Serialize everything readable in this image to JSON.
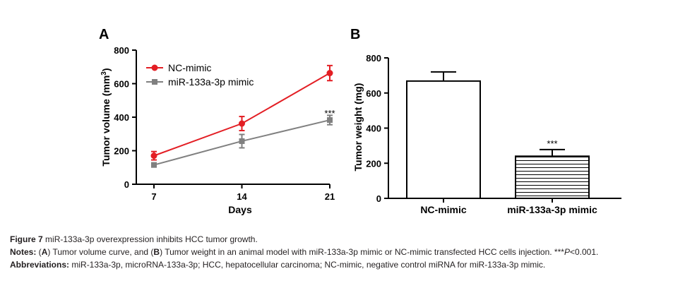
{
  "figure": {
    "caption": {
      "figure_label": "Figure 7",
      "title": "miR-133a-3p overexpression inhibits HCC tumor growth.",
      "notes_label": "Notes:",
      "notes_a_label": "A",
      "notes_a_text": ") Tumor volume curve, and (",
      "notes_b_label": "B",
      "notes_b_text": ") Tumor weight in an animal model with miR-133a-3p mimic or NC-mimic transfected HCC cells injection. ***",
      "notes_p": "P",
      "notes_p_text": "<0.001.",
      "abbrev_label": "Abbreviations:",
      "abbrev_text": "miR-133a-3p, microRNA-133a-3p; HCC, hepatocellular carcinoma; NC-mimic, negative control miRNA for miR-133a-3p mimic."
    }
  },
  "chart_data": [
    {
      "panel": "A",
      "type": "line",
      "xlabel": "Days",
      "ylabel": "Tumor volume (mm",
      "ylabel_sup": "3",
      "ylabel_end": ")",
      "x": [
        7,
        14,
        21
      ],
      "xticklabels": [
        "7",
        "14",
        "21"
      ],
      "ylim": [
        0,
        800
      ],
      "yticks": [
        0,
        200,
        400,
        600,
        800
      ],
      "legend_position": "top-left",
      "series": [
        {
          "name": "NC-mimic",
          "color": "#e31e24",
          "values": [
            170,
            362,
            663
          ],
          "errors": [
            25,
            42,
            45
          ]
        },
        {
          "name": "miR-133a-3p mimic",
          "color": "#808080",
          "values": [
            115,
            257,
            383
          ],
          "errors": [
            12,
            40,
            28
          ]
        }
      ],
      "annotations": [
        {
          "text": "***",
          "x": 21,
          "y": 430
        }
      ]
    },
    {
      "panel": "B",
      "type": "bar",
      "ylabel": "Tumor weight (mg)",
      "categories": [
        "NC-mimic",
        "miR-133a-3p mimic"
      ],
      "values": [
        668,
        240
      ],
      "errors": [
        52,
        38
      ],
      "fills": [
        "open",
        "horizontal-hatch"
      ],
      "ylim": [
        0,
        800
      ],
      "yticks": [
        0,
        200,
        400,
        600,
        800
      ],
      "annotations": [
        {
          "text": "***",
          "category": "miR-133a-3p mimic"
        }
      ]
    }
  ]
}
